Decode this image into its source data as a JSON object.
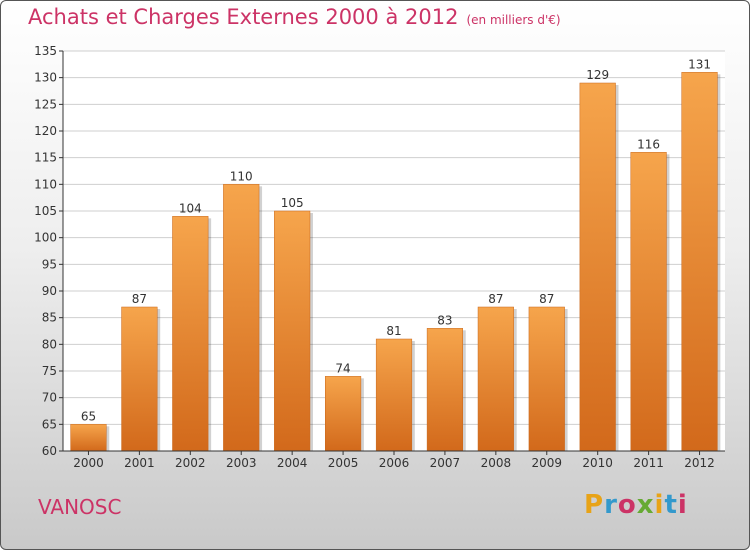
{
  "header": {
    "title": "Achats et Charges Externes 2000 à 2012",
    "unit": "(en milliers d'€)"
  },
  "footer": {
    "commune": "VANOSC",
    "logo_text": "Proxiti",
    "logo_colors": [
      "#e8a317",
      "#3399cc",
      "#cc3366",
      "#66aa33",
      "#e8a317",
      "#3399cc",
      "#cc3366"
    ]
  },
  "colors": {
    "bar_light": "#f6a54c",
    "bar_dark": "#d2691b",
    "title": "#cc3366",
    "grid": "#cfcfcf",
    "axis": "#333333"
  },
  "chart_data": {
    "type": "bar",
    "title": "Achats et Charges Externes 2000 à 2012",
    "subtitle": "(en milliers d'€)",
    "xlabel": "",
    "ylabel": "",
    "categories": [
      "2000",
      "2001",
      "2002",
      "2003",
      "2004",
      "2005",
      "2006",
      "2007",
      "2008",
      "2009",
      "2010",
      "2011",
      "2012"
    ],
    "values": [
      65,
      87,
      104,
      110,
      105,
      74,
      81,
      83,
      87,
      87,
      129,
      116,
      131
    ],
    "ylim": [
      60,
      135
    ],
    "yticks": [
      60,
      65,
      70,
      75,
      80,
      85,
      90,
      95,
      100,
      105,
      110,
      115,
      120,
      125,
      130,
      135
    ],
    "grid": true,
    "legend": "none"
  }
}
